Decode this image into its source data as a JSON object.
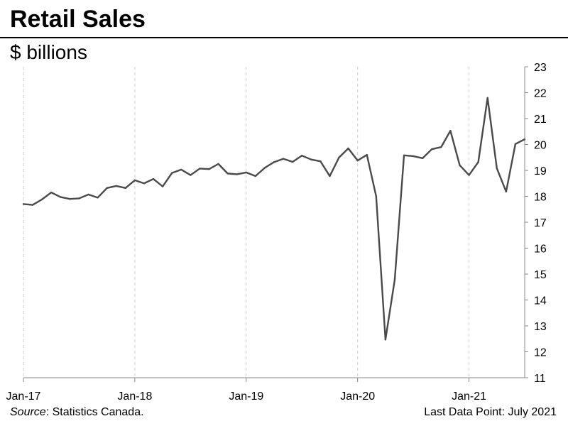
{
  "header": {
    "title": "Retail Sales",
    "subtitle": "$ billions"
  },
  "footer": {
    "source_label": "Source",
    "source_text": ": Statistics Canada.",
    "last_data_point": "Last Data Point: July 2021"
  },
  "chart_data": {
    "type": "line",
    "title": "Retail Sales",
    "ylabel": "$ billions",
    "ylim": [
      11,
      23
    ],
    "yticks": [
      11,
      12,
      13,
      14,
      15,
      16,
      17,
      18,
      19,
      20,
      21,
      22,
      23
    ],
    "y_axis_side": "right",
    "x_range": [
      "2017-01",
      "2021-07"
    ],
    "xticks": [
      {
        "date": "2017-01",
        "label": "Jan-17"
      },
      {
        "date": "2018-01",
        "label": "Jan-18"
      },
      {
        "date": "2019-01",
        "label": "Jan-19"
      },
      {
        "date": "2020-01",
        "label": "Jan-20"
      },
      {
        "date": "2021-01",
        "label": "Jan-21"
      }
    ],
    "grid": "vertical dashed at x ticks",
    "line_color": "#4a4a4a",
    "series": [
      {
        "x": [
          "2017-01",
          "2017-02",
          "2017-03",
          "2017-04",
          "2017-05",
          "2017-06",
          "2017-07",
          "2017-08",
          "2017-09",
          "2017-10",
          "2017-11",
          "2017-12",
          "2018-01",
          "2018-02",
          "2018-03",
          "2018-04",
          "2018-05",
          "2018-06",
          "2018-07",
          "2018-08",
          "2018-09",
          "2018-10",
          "2018-11",
          "2018-12",
          "2019-01",
          "2019-02",
          "2019-03",
          "2019-04",
          "2019-05",
          "2019-06",
          "2019-07",
          "2019-08",
          "2019-09",
          "2019-10",
          "2019-11",
          "2019-12",
          "2020-01",
          "2020-02",
          "2020-03",
          "2020-04",
          "2020-05",
          "2020-06",
          "2020-07",
          "2020-08",
          "2020-09",
          "2020-10",
          "2020-11",
          "2020-12",
          "2021-01",
          "2021-02",
          "2021-03",
          "2021-04",
          "2021-05",
          "2021-06",
          "2021-07"
        ],
        "values": [
          17.7,
          17.67,
          17.88,
          18.15,
          17.97,
          17.9,
          17.92,
          18.07,
          17.95,
          18.32,
          18.4,
          18.32,
          18.62,
          18.5,
          18.67,
          18.38,
          18.9,
          19.03,
          18.82,
          19.07,
          19.05,
          19.25,
          18.88,
          18.85,
          18.92,
          18.78,
          19.1,
          19.32,
          19.45,
          19.33,
          19.57,
          19.42,
          19.35,
          18.78,
          19.5,
          19.85,
          19.38,
          19.6,
          18.0,
          12.47,
          14.78,
          19.58,
          19.55,
          19.47,
          19.82,
          19.9,
          20.53,
          19.2,
          18.82,
          19.32,
          21.8,
          19.08,
          18.18,
          20.02,
          20.2
        ]
      }
    ]
  }
}
